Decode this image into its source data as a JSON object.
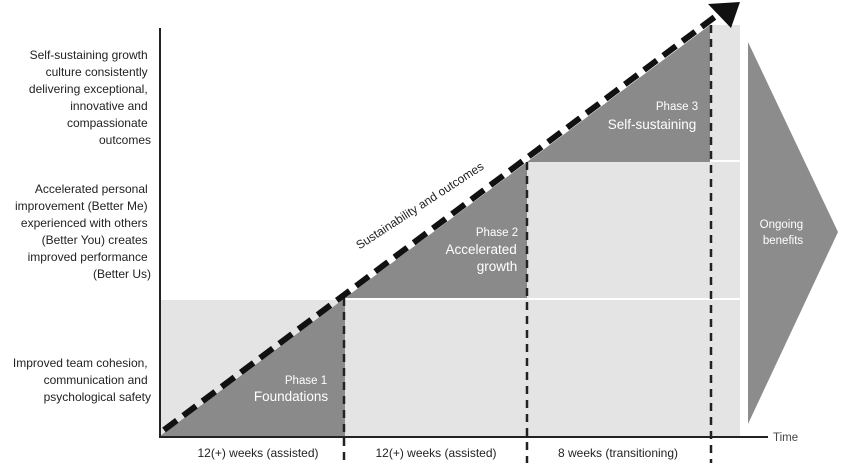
{
  "levels": [
    {
      "lines": [
        "Self-sustaining growth",
        "culture consistently",
        "delivering exceptional,",
        "innovative and",
        "compassionate",
        "outcomes"
      ]
    },
    {
      "lines": [
        "Accelerated personal",
        "improvement (Better Me)",
        "experienced with others",
        "(Better You) creates",
        "improved performance",
        "(Better Us)"
      ]
    },
    {
      "lines": [
        "Improved team cohesion,",
        "communication and",
        "psychological safety"
      ]
    }
  ],
  "phases": [
    {
      "number": "Phase 1",
      "title_lines": [
        "Foundations"
      ]
    },
    {
      "number": "Phase 2",
      "title_lines": [
        "Accelerated",
        "growth"
      ]
    },
    {
      "number": "Phase 3",
      "title_lines": [
        "Self-sustaining"
      ]
    }
  ],
  "durations": [
    "12(+) weeks (assisted)",
    "12(+) weeks (assisted)",
    "8 weeks (transitioning)"
  ],
  "trend_label": "Sustainability and outcomes",
  "x_axis_label": "Time",
  "ongoing_lines": [
    "Ongoing",
    "benefits"
  ],
  "colors": {
    "phase_fill": "#8a8a8a",
    "band_fill": "#e3e4e3",
    "arrow_fill": "#8c8c8c",
    "axis": "#222222",
    "text_light": "#ffffff"
  }
}
